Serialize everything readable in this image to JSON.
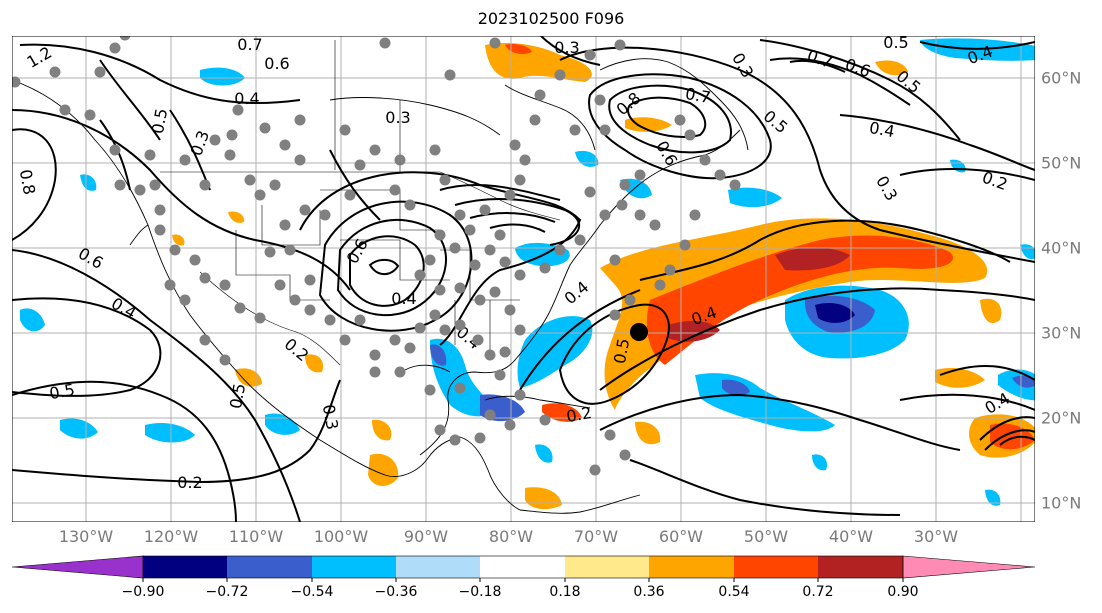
{
  "title": "2023102500 F096",
  "map": {
    "lon_labels": [
      "130°W",
      "120°W",
      "110°W",
      "100°W",
      "90°W",
      "80°W",
      "70°W",
      "60°W",
      "50°W",
      "40°W",
      "30°W"
    ],
    "lat_labels": [
      "60°N",
      "50°N",
      "40°N",
      "30°N",
      "20°N",
      "10°N"
    ],
    "contour_labels": [
      "1.2",
      "0.7",
      "0.6",
      "0.5",
      "0.4",
      "0.3",
      "0.3",
      "0.8",
      "0.6",
      "0.4",
      "0.6",
      "0.4",
      "0.2",
      "0.5",
      "0.2",
      "0.3",
      "0.5",
      "0.4",
      "0.4",
      "0.5",
      "0.7",
      "0.3",
      "0.8",
      "0.6",
      "0.5",
      "0.4",
      "0.3",
      "0.2",
      "0.5",
      "0.4",
      "0.7",
      "0.6",
      "0.5",
      "0.4",
      "0.3",
      "0.2",
      "0.4"
    ]
  },
  "colorbar": {
    "ticks": [
      "−0.90",
      "−0.72",
      "−0.54",
      "−0.36",
      "−0.18",
      "0.18",
      "0.36",
      "0.54",
      "0.72",
      "0.90"
    ],
    "colors": [
      "#9932cc",
      "#000080",
      "#3a5fcd",
      "#00bfff",
      "#afdcf8",
      "#ffffff",
      "#ffe98a",
      "#ffa500",
      "#ff4500",
      "#b22222",
      "#ff8ab4"
    ]
  },
  "colors": {
    "land_outline": "#000000",
    "grid": "#b0b0b0",
    "station_marker": "#808080",
    "storm_marker": "#000000"
  }
}
